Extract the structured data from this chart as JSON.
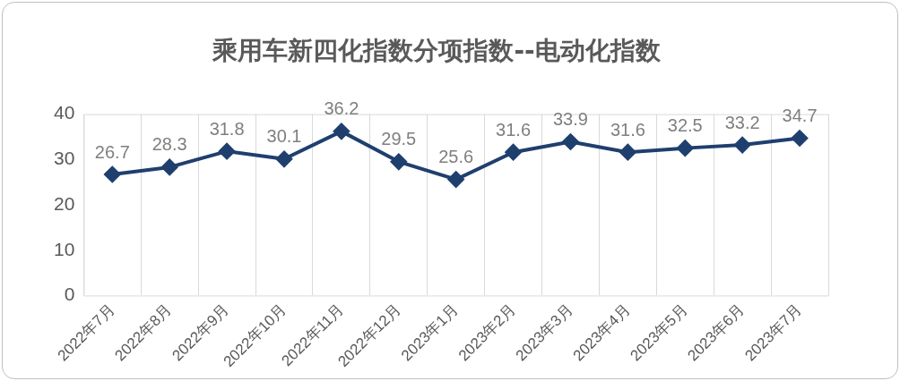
{
  "chart_data": {
    "type": "line",
    "title": "乘用车新四化指数分项指数--电动化指数",
    "categories": [
      "2022年7月",
      "2022年8月",
      "2022年9月",
      "2022年10月",
      "2022年11月",
      "2022年12月",
      "2023年1月",
      "2023年2月",
      "2023年3月",
      "2023年4月",
      "2023年5月",
      "2023年6月",
      "2023年7月"
    ],
    "values": [
      26.7,
      28.3,
      31.8,
      30.1,
      36.2,
      29.5,
      25.6,
      31.6,
      33.9,
      31.6,
      32.5,
      33.2,
      34.7
    ],
    "color": "#1f3f6e",
    "ylim": [
      0,
      40
    ],
    "yticks": [
      0,
      10,
      20,
      30,
      40
    ],
    "grid": "x",
    "marker": "diamond",
    "line_style": "solid",
    "data_labels": true
  }
}
